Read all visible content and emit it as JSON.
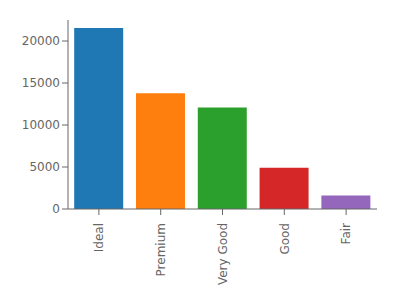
{
  "chart_data": {
    "type": "bar",
    "categories": [
      "Ideal",
      "Premium",
      "Very Good",
      "Good",
      "Fair"
    ],
    "values": [
      21551,
      13791,
      12082,
      4906,
      1610
    ],
    "colors": [
      "#1f77b4",
      "#ff7f0e",
      "#2ca02c",
      "#d62728",
      "#9467bd"
    ],
    "ylim": [
      0,
      22500
    ],
    "yticks": [
      0,
      5000,
      10000,
      15000,
      20000
    ],
    "grid": false
  }
}
